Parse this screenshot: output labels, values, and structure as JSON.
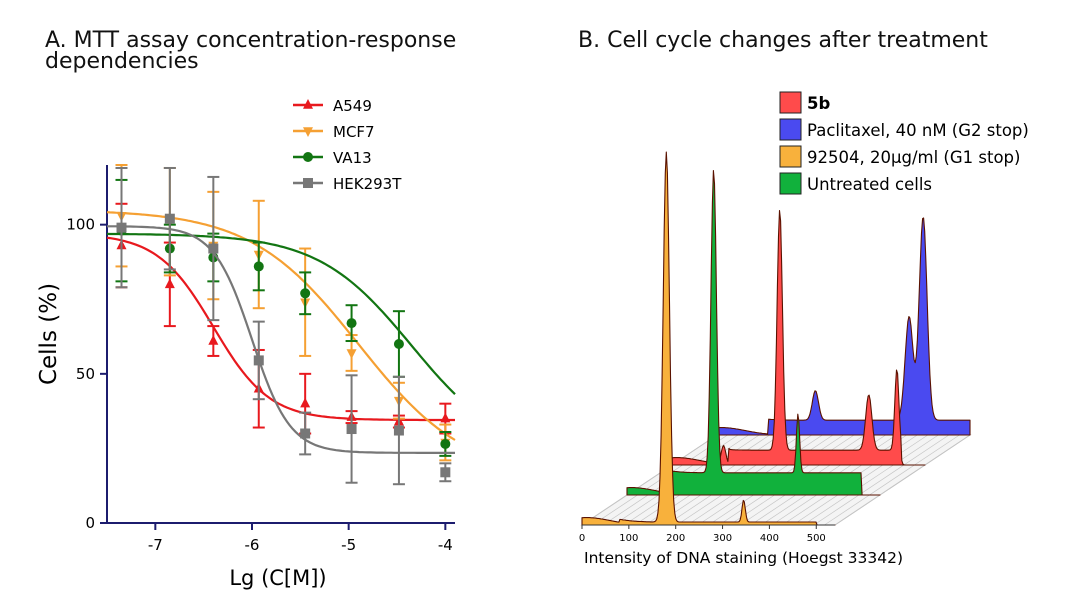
{
  "colors": {
    "A549": "#e8191e",
    "MCF7": "#f5a033",
    "VA13": "#127512",
    "HEK293T": "#777777",
    "5b": "#ff4b4b",
    "Paclitaxel": "#4a4af0",
    "92504": "#f8b13c",
    "Untreated": "#11b13c"
  },
  "chart_data": [
    {
      "type": "line",
      "panel": "A",
      "title": "A. MTT assay concentration-response dependencies",
      "xlabel": "Lg (C[M])",
      "ylabel": "Cells (%)",
      "xlim": [
        -7.5,
        -3.9
      ],
      "ylim": [
        0,
        120
      ],
      "xticks": [
        -7,
        -6,
        -5,
        -4
      ],
      "yticks": [
        0,
        50,
        100
      ],
      "legend_position": "top-right",
      "x": [
        -7.35,
        -6.85,
        -6.4,
        -5.93,
        -5.45,
        -4.97,
        -4.48,
        -4.0
      ],
      "series": [
        {
          "name": "A549",
          "marker": "triangle-up",
          "values": [
            93,
            80,
            61,
            45,
            40,
            35.5,
            34,
            35
          ],
          "errors": [
            14,
            14,
            5,
            13,
            10,
            2,
            2,
            5
          ],
          "fit": {
            "bottom": 34.5,
            "top": 97,
            "logIC50": -6.4,
            "hill": 1.5
          }
        },
        {
          "name": "MCF7",
          "marker": "triangle-down",
          "values": [
            103,
            101,
            93,
            90,
            74,
            57,
            41,
            27
          ],
          "errors": [
            17,
            18,
            18,
            18,
            18,
            6,
            6,
            6
          ],
          "fit": {
            "bottom": 15,
            "top": 105,
            "logIC50": -4.9,
            "hill": 0.78
          }
        },
        {
          "name": "VA13",
          "marker": "circle",
          "values": [
            98,
            92,
            89,
            86,
            77,
            67,
            60,
            26.5
          ],
          "errors": [
            17,
            8,
            8,
            8,
            7,
            6,
            11,
            4
          ],
          "fit": {
            "bottom": 22,
            "top": 97,
            "logIC50": -4.35,
            "hill": 0.9
          }
        },
        {
          "name": "HEK293T",
          "marker": "square",
          "values": [
            99,
            102,
            92,
            54.5,
            30,
            31.5,
            31,
            17
          ],
          "errors": [
            20,
            17,
            24,
            13,
            7,
            18,
            18,
            3
          ],
          "fit": {
            "bottom": 23.5,
            "top": 99.5,
            "logIC50": -6.0,
            "hill": 2.2
          }
        }
      ]
    },
    {
      "type": "area",
      "panel": "B",
      "title": "B. Cell cycle changes after treatment",
      "xlabel": "Intensity of DNA staining  (Hoegst 33342)",
      "xlim": [
        0,
        540
      ],
      "xticks": [
        0,
        100,
        200,
        300,
        400,
        500
      ],
      "legend_position": "top-right",
      "series": [
        {
          "name": "5b",
          "bold": true,
          "peaks": [
            [
              10,
              0.02,
              0.52
            ],
            [
              110,
              0.05,
              0.02
            ],
            [
              230,
              0.65,
              0.03
            ],
            [
              420,
              0.15,
              0.04
            ],
            [
              480,
              0.22,
              0.015
            ]
          ],
          "baseline_level": 0.04,
          "baseline_start": 120,
          "baseline_end": 490
        },
        {
          "name": "Paclitaxel, 40 nM (G2 stop)",
          "peaks": [
            [
              10,
              0.02,
              0.52
            ],
            [
              210,
              0.08,
              0.04
            ],
            [
              410,
              0.28,
              0.06
            ],
            [
              440,
              0.55,
              0.06
            ]
          ],
          "baseline_level": 0.04,
          "baseline_start": 110,
          "baseline_end": 560
        },
        {
          "name": "92504, 20µg/ml (G1 stop)",
          "peaks": [
            [
              10,
              0.02,
              0.52
            ],
            [
              180,
              1.0,
              0.04
            ],
            [
              345,
              0.06,
              0.005
            ]
          ],
          "baseline_level": 0.008,
          "baseline_start": 80,
          "baseline_end": 500
        },
        {
          "name": "Untreated cells",
          "peaks": [
            [
              10,
              0.02,
              0.52
            ],
            [
              185,
              0.82,
              0.03
            ],
            [
              365,
              0.16,
              0.005
            ]
          ],
          "baseline_level": 0.06,
          "baseline_start": 70,
          "baseline_end": 500
        }
      ]
    }
  ]
}
